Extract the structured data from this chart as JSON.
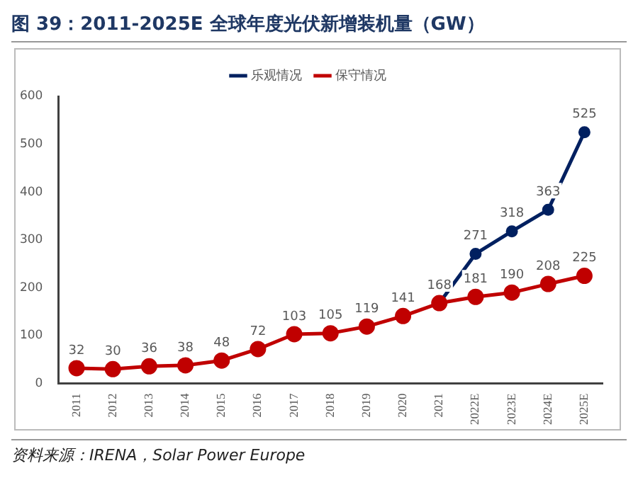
{
  "chart_data": {
    "type": "line",
    "title": "图 39：2011-2025E 全球年度光伏新增装机量（GW）",
    "categories": [
      "2011",
      "2012",
      "2013",
      "2014",
      "2015",
      "2016",
      "2017",
      "2018",
      "2019",
      "2020",
      "2021",
      "2022E",
      "2023E",
      "2024E",
      "2025E"
    ],
    "series": [
      {
        "name": "乐观情况",
        "color": "#002060",
        "values": [
          null,
          null,
          null,
          null,
          null,
          null,
          null,
          null,
          null,
          null,
          168,
          271,
          318,
          363,
          525
        ],
        "value_labels": [
          null,
          null,
          null,
          null,
          null,
          null,
          null,
          null,
          null,
          null,
          null,
          "271",
          "318",
          "363",
          "525"
        ]
      },
      {
        "name": "保守情况",
        "color": "#c00000",
        "values": [
          32,
          30,
          36,
          38,
          48,
          72,
          103,
          105,
          119,
          141,
          168,
          181,
          190,
          208,
          225
        ],
        "value_labels": [
          "32",
          "30",
          "36",
          "38",
          "48",
          "72",
          "103",
          "105",
          "119",
          "141",
          "168",
          "181",
          "190",
          "208",
          "225"
        ]
      }
    ],
    "ylim": [
      0,
      600
    ],
    "yticks": [
      0,
      100,
      200,
      300,
      400,
      500,
      600
    ],
    "grid": false,
    "legend": "top",
    "marker": "circle",
    "annotations": [
      "资料来源：IRENA，Solar Power Europe"
    ]
  }
}
